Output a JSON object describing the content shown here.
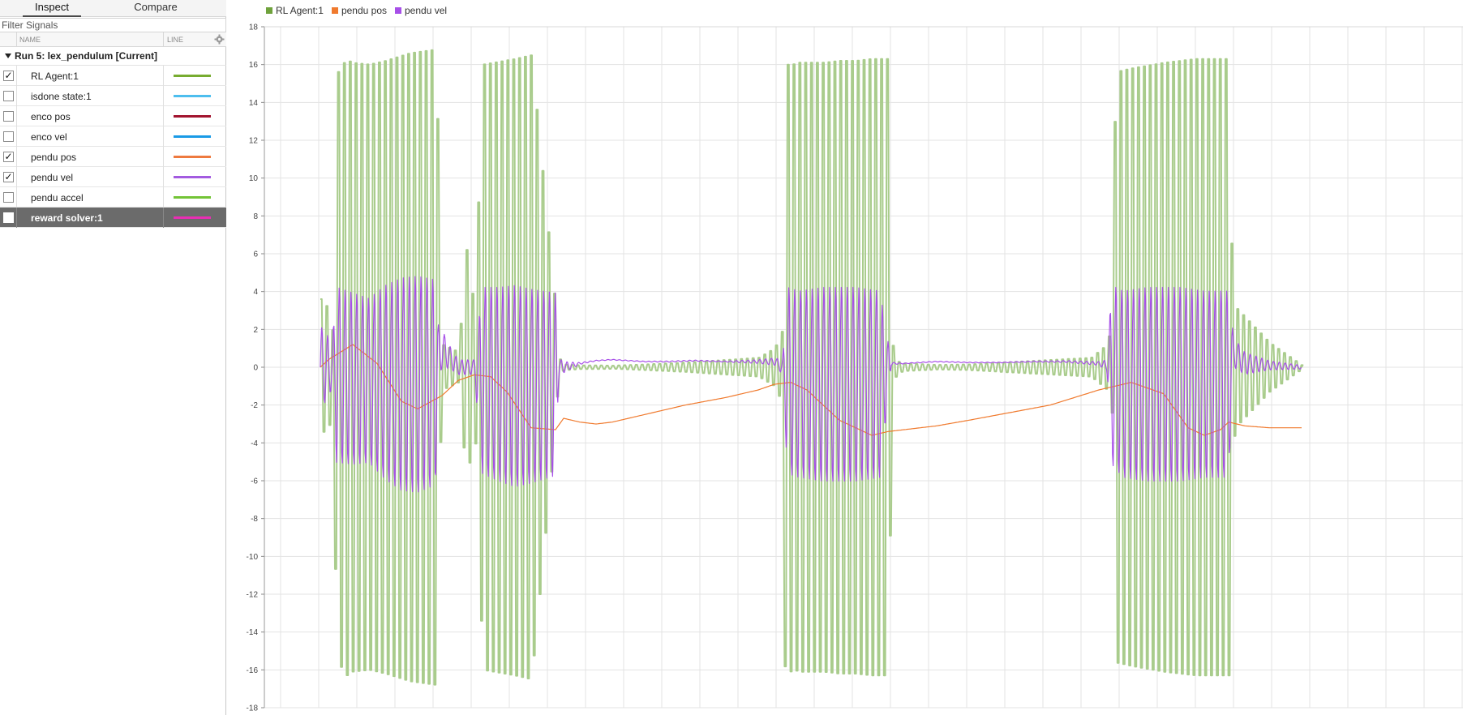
{
  "tabs": [
    {
      "label": "Inspect"
    },
    {
      "label": "Compare"
    }
  ],
  "filter": {
    "placeholder": "Filter Signals"
  },
  "columns": {
    "name": "NAME",
    "line": "LINE"
  },
  "run": {
    "label": "Run 5: lex_pendulum [Current]"
  },
  "signals": [
    {
      "name": "RL Agent:1",
      "checked": true,
      "color": "#77AC30"
    },
    {
      "name": "isdone state:1",
      "checked": false,
      "color": "#4DBEEE"
    },
    {
      "name": "enco pos",
      "checked": false,
      "color": "#A2142F"
    },
    {
      "name": "enco vel",
      "checked": false,
      "color": "#1A9AE6"
    },
    {
      "name": "pendu pos",
      "checked": true,
      "color": "#EE7A3F"
    },
    {
      "name": "pendu vel",
      "checked": true,
      "color": "#A35BE0"
    },
    {
      "name": "pendu accel",
      "checked": false,
      "color": "#73C436"
    },
    {
      "name": "reward solver:1",
      "checked": false,
      "color": "#E82EB3",
      "selected": true
    }
  ],
  "legend": [
    {
      "name": "RL Agent:1",
      "color": "#6FA23C"
    },
    {
      "name": "pendu pos",
      "color": "#F07A2E"
    },
    {
      "name": "pendu vel",
      "color": "#A74FE8"
    }
  ],
  "chart_data": {
    "type": "line",
    "ylim": [
      -18,
      18
    ],
    "yticks": [
      18,
      16,
      14,
      12,
      10,
      8,
      6,
      4,
      2,
      0,
      -2,
      -4,
      -6,
      -8,
      -10,
      -12,
      -14,
      -16,
      -18
    ],
    "grid": true,
    "legend_position": "top-left",
    "series": [
      {
        "name": "RL Agent:1",
        "color": "#A9CC8C",
        "oscillating": true,
        "x": [
          0,
          12,
          14,
          20,
          32,
          38,
          60,
          80,
          110,
          143,
          146,
          150,
          170,
          180,
          190,
          200,
          240,
          260,
          290,
          292,
          294,
          296,
          300,
          320,
          340,
          360,
          400,
          450,
          540,
          560,
          570,
          572,
          576,
          580,
          584,
          590,
          620,
          640,
          660,
          680,
          700,
          704,
          708,
          712,
          720,
          760,
          800,
          840,
          950,
          970,
          976,
          980,
          1000,
          1040,
          1080,
          1120,
          1124,
          1130,
          1170,
          1210
        ],
        "amp": [
          3.6,
          3.0,
          1.0,
          15.5,
          16.3,
          16.1,
          16.0,
          16.2,
          16.6,
          16.8,
          5.8,
          1.2,
          0.8,
          6.2,
          3.0,
          16.0,
          16.3,
          16.5,
          3.0,
          1.2,
          0.6,
          0.3,
          0.15,
          0.1,
          0.1,
          0.08,
          0.15,
          0.25,
          0.5,
          1.0,
          2.0,
          15.8,
          16.0,
          16.1,
          16.0,
          16.1,
          16.1,
          16.2,
          16.2,
          16.3,
          16.3,
          1.5,
          0.6,
          0.3,
          0.2,
          0.12,
          0.15,
          0.25,
          0.5,
          1.2,
          2.5,
          15.6,
          15.8,
          16.1,
          16.3,
          16.3,
          4.1,
          3.1,
          1.3,
          0.1
        ]
      },
      {
        "name": "pendu pos",
        "color": "#F07A2E",
        "x": [
          0,
          10,
          40,
          70,
          100,
          120,
          150,
          170,
          190,
          210,
          230,
          260,
          290,
          300,
          320,
          340,
          360,
          400,
          450,
          500,
          540,
          560,
          580,
          600,
          640,
          680,
          700,
          720,
          760,
          800,
          850,
          900,
          960,
          990,
          1000,
          1040,
          1070,
          1090,
          1110,
          1120,
          1140,
          1170,
          1210
        ],
        "y": [
          0,
          0.4,
          1.2,
          0.2,
          -1.8,
          -2.2,
          -1.5,
          -0.7,
          -0.4,
          -0.5,
          -1.3,
          -3.2,
          -3.3,
          -2.7,
          -2.9,
          -3.0,
          -2.9,
          -2.5,
          -2.0,
          -1.6,
          -1.2,
          -0.9,
          -0.8,
          -1.2,
          -2.8,
          -3.6,
          -3.4,
          -3.3,
          -3.1,
          -2.8,
          -2.4,
          -2.0,
          -1.2,
          -0.9,
          -0.8,
          -1.4,
          -3.2,
          -3.6,
          -3.3,
          -2.9,
          -3.1,
          -3.2,
          -3.2
        ]
      },
      {
        "name": "pendu vel",
        "color": "#A74FE8",
        "oscillating": true,
        "x": [
          0,
          4,
          12,
          14,
          20,
          40,
          60,
          80,
          100,
          120,
          142,
          146,
          150,
          160,
          170,
          180,
          190,
          200,
          220,
          240,
          260,
          290,
          294,
          300,
          320,
          340,
          360,
          400,
          430,
          460,
          500,
          540,
          560,
          570,
          576,
          590,
          620,
          660,
          690,
          704,
          708,
          720,
          760,
          800,
          840,
          880,
          920,
          960,
          970,
          976,
          990,
          1020,
          1060,
          1090,
          1120,
          1126,
          1140,
          1170,
          1210
        ],
        "c": [
          0,
          0,
          0,
          0,
          -0.4,
          -0.6,
          -0.7,
          -0.8,
          -0.9,
          -0.9,
          -0.8,
          0.5,
          1.0,
          0.5,
          0,
          0,
          0,
          -0.7,
          -0.9,
          -1.0,
          -1.0,
          -0.9,
          0,
          0,
          0.2,
          0.35,
          0.4,
          0.3,
          0.3,
          0.35,
          0.3,
          0.3,
          0.3,
          0,
          -0.7,
          -0.9,
          -0.9,
          -0.9,
          -0.9,
          0.2,
          0.2,
          0.2,
          0.3,
          0.25,
          0.25,
          0.3,
          0.3,
          0.2,
          0.1,
          -0.4,
          -0.9,
          -0.9,
          -0.9,
          -0.9,
          -0.9,
          0.8,
          0.2,
          0.1,
          0
        ],
        "amp": [
          2.2,
          2.0,
          1.5,
          1.0,
          4.7,
          4.6,
          4.4,
          5.2,
          5.7,
          5.8,
          5.5,
          1.5,
          1.0,
          0.6,
          0.4,
          0.4,
          0.4,
          5.0,
          5.2,
          5.4,
          5.2,
          4.9,
          0.5,
          0.3,
          0.05,
          0.02,
          0.02,
          0.02,
          0.03,
          0.03,
          0.03,
          0.1,
          0.2,
          0.4,
          5.0,
          5.0,
          5.2,
          5.2,
          5.0,
          0.1,
          0.05,
          0.02,
          0.02,
          0.02,
          0.02,
          0.03,
          0.05,
          0.1,
          0.3,
          4.8,
          5.0,
          5.2,
          5.2,
          5.0,
          5.0,
          0.8,
          0.6,
          0.25,
          0.1
        ]
      }
    ]
  }
}
